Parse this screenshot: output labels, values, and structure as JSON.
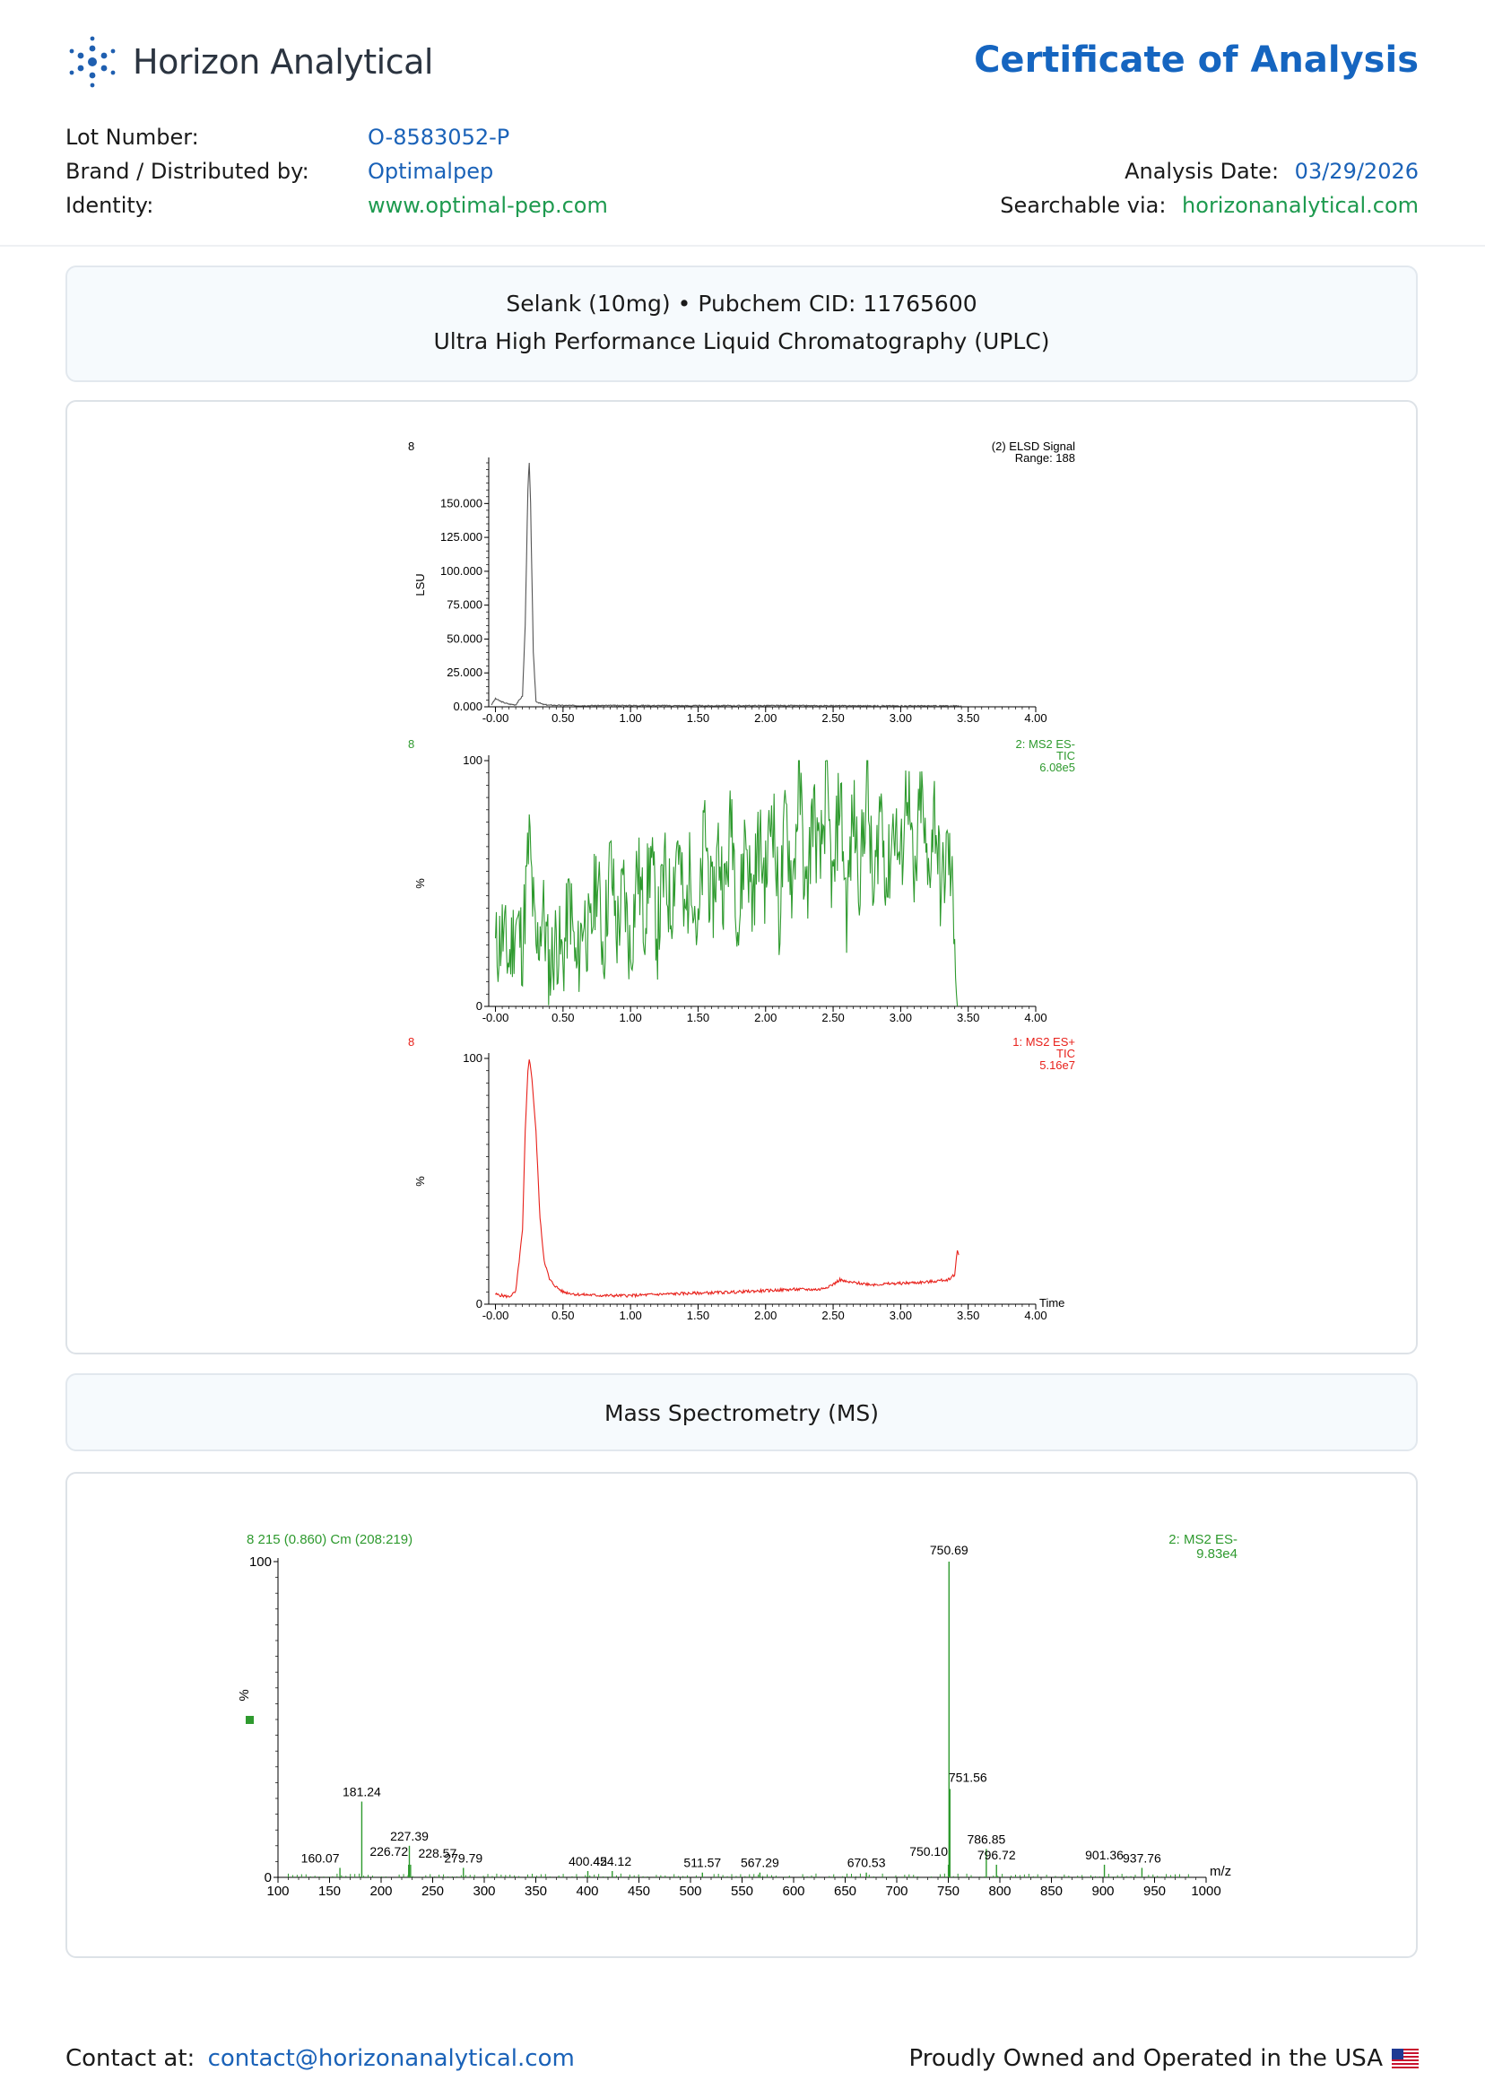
{
  "header": {
    "brand_name": "Horizon Analytical",
    "document_title": "Certificate of Analysis"
  },
  "meta": {
    "lot_label": "Lot Number:",
    "lot_value": "O-8583052-P",
    "brand_label": "Brand / Distributed by:",
    "brand_value": "Optimalpep",
    "identity_label": "Identity:",
    "identity_value": "www.optimal-pep.com",
    "analysis_date_label": "Analysis Date:",
    "analysis_date_value": "03/29/2026",
    "searchable_label": "Searchable via:",
    "searchable_value": "horizonanalytical.com"
  },
  "uplc_panel": {
    "line1": "Selank (10mg) • Pubchem CID: 11765600",
    "line2": "Ultra High Performance Liquid Chromatography (UPLC)"
  },
  "ms_panel": {
    "title": "Mass Spectrometry (MS)"
  },
  "colors": {
    "brand_blue": "#1565c0",
    "link_green": "#1e9a4f",
    "elsd": "#555555",
    "ms_neg": "#2e9a2e",
    "ms_pos": "#e8201a"
  },
  "chart_data": [
    {
      "type": "line",
      "id": "elsd",
      "corner_label": "8",
      "trace_label": [
        "(2) ELSD Signal",
        "Range: 188"
      ],
      "ylabel": "LSU",
      "xlim": [
        -0.05,
        4.0
      ],
      "ylim": [
        0,
        180000
      ],
      "x_ticks": [
        "-0.00",
        "0.50",
        "1.00",
        "1.50",
        "2.00",
        "2.50",
        "3.00",
        "3.50",
        "4.00"
      ],
      "y_ticks": [
        "0.000",
        "25.000",
        "50.000",
        "75.000",
        "100.000",
        "125.000",
        "150.000"
      ],
      "color": "elsd",
      "x": [
        -0.03,
        0.0,
        0.05,
        0.1,
        0.15,
        0.2,
        0.22,
        0.24,
        0.25,
        0.26,
        0.28,
        0.3,
        0.35,
        0.4,
        0.6,
        1.0,
        1.5,
        2.0,
        2.5,
        3.0,
        3.3,
        3.45
      ],
      "y": [
        1500,
        6000,
        3500,
        2000,
        1500,
        8000,
        60000,
        160000,
        182000,
        150000,
        40000,
        4000,
        1800,
        1200,
        900,
        1000,
        800,
        900,
        800,
        700,
        700,
        600
      ]
    },
    {
      "type": "line",
      "id": "ms2-es-neg-tic",
      "corner_label": "8",
      "trace_label": [
        "2: MS2 ES-",
        "TIC",
        "6.08e5"
      ],
      "ylabel": "%",
      "xlim": [
        -0.05,
        4.0
      ],
      "ylim": [
        0,
        100
      ],
      "y_ticks": [
        "0",
        "100"
      ],
      "x_ticks": [
        "-0.00",
        "0.50",
        "1.00",
        "1.50",
        "2.00",
        "2.50",
        "3.00",
        "3.50",
        "4.00"
      ],
      "color": "ms_neg",
      "x": [
        0.0,
        0.05,
        0.1,
        0.15,
        0.2,
        0.25,
        0.3,
        0.35,
        0.4,
        0.45,
        0.5,
        0.55,
        0.6,
        0.65,
        0.7,
        0.75,
        0.8,
        0.85,
        0.9,
        0.95,
        1.0,
        1.05,
        1.1,
        1.15,
        1.2,
        1.25,
        1.3,
        1.35,
        1.4,
        1.45,
        1.5,
        1.55,
        1.6,
        1.65,
        1.7,
        1.75,
        1.8,
        1.85,
        1.9,
        1.95,
        2.0,
        2.05,
        2.1,
        2.15,
        2.2,
        2.25,
        2.3,
        2.35,
        2.4,
        2.45,
        2.5,
        2.55,
        2.6,
        2.65,
        2.7,
        2.75,
        2.8,
        2.85,
        2.9,
        2.95,
        3.0,
        3.05,
        3.1,
        3.15,
        3.2,
        3.25,
        3.3,
        3.35,
        3.4,
        3.42
      ],
      "y": [
        22,
        30,
        18,
        35,
        25,
        68,
        20,
        40,
        15,
        28,
        18,
        45,
        12,
        38,
        25,
        55,
        22,
        60,
        30,
        48,
        20,
        58,
        35,
        62,
        28,
        55,
        40,
        70,
        32,
        60,
        25,
        75,
        38,
        65,
        45,
        80,
        30,
        72,
        42,
        68,
        50,
        85,
        35,
        78,
        48,
        95,
        40,
        82,
        55,
        88,
        45,
        90,
        38,
        80,
        52,
        92,
        40,
        85,
        48,
        78,
        55,
        95,
        42,
        88,
        50,
        82,
        45,
        65,
        35,
        0
      ]
    },
    {
      "type": "line",
      "id": "ms2-es-pos-tic",
      "corner_label": "8",
      "trace_label": [
        "1: MS2 ES+",
        "TIC",
        "5.16e7"
      ],
      "ylabel": "%",
      "xlabel": "Time",
      "xlim": [
        -0.05,
        4.0
      ],
      "ylim": [
        0,
        100
      ],
      "y_ticks": [
        "0",
        "100"
      ],
      "x_ticks": [
        "-0.00",
        "0.50",
        "1.00",
        "1.50",
        "2.00",
        "2.50",
        "3.00",
        "3.50",
        "4.00"
      ],
      "color": "ms_pos",
      "x": [
        0.0,
        0.1,
        0.15,
        0.2,
        0.22,
        0.24,
        0.25,
        0.27,
        0.3,
        0.33,
        0.36,
        0.4,
        0.45,
        0.5,
        0.6,
        0.8,
        1.0,
        1.2,
        1.5,
        1.8,
        2.0,
        2.2,
        2.4,
        2.5,
        2.55,
        2.6,
        2.8,
        3.0,
        3.2,
        3.35,
        3.4,
        3.42,
        3.43
      ],
      "y": [
        4,
        3,
        5,
        30,
        70,
        95,
        100,
        92,
        70,
        35,
        18,
        10,
        7,
        5,
        4,
        3.5,
        3.5,
        4,
        4.5,
        5,
        5.5,
        6,
        6,
        8,
        10,
        9,
        8,
        8.5,
        9,
        10,
        12,
        22,
        20
      ]
    },
    {
      "type": "bar",
      "id": "ms-spectrum",
      "scan_label": "8 215 (0.860) Cm (208:219)",
      "trace_label": [
        "2: MS2 ES-",
        "9.83e4"
      ],
      "ylabel": "%",
      "xlabel": "m/z",
      "xlim": [
        100,
        1000
      ],
      "ylim": [
        0,
        100
      ],
      "y_ticks": [
        "0",
        "100"
      ],
      "x_ticks": [
        "100",
        "150",
        "200",
        "250",
        "300",
        "350",
        "400",
        "450",
        "500",
        "550",
        "600",
        "650",
        "700",
        "750",
        "800",
        "850",
        "900",
        "950",
        "1000"
      ],
      "color": "ms_neg",
      "peaks": [
        {
          "mz": 160.07,
          "intensity": 3,
          "label": "160.07"
        },
        {
          "mz": 181.24,
          "intensity": 24,
          "label": "181.24"
        },
        {
          "mz": 226.72,
          "intensity": 4,
          "label": "226.72"
        },
        {
          "mz": 227.39,
          "intensity": 10,
          "label": "227.39"
        },
        {
          "mz": 228.57,
          "intensity": 4,
          "label": "228.57"
        },
        {
          "mz": 279.79,
          "intensity": 3,
          "label": "279.79"
        },
        {
          "mz": 400.45,
          "intensity": 2,
          "label": "400.45"
        },
        {
          "mz": 424.12,
          "intensity": 2,
          "label": "424.12"
        },
        {
          "mz": 511.57,
          "intensity": 1.5,
          "label": "511.57"
        },
        {
          "mz": 567.29,
          "intensity": 1.5,
          "label": "567.29"
        },
        {
          "mz": 670.53,
          "intensity": 1.5,
          "label": "670.53"
        },
        {
          "mz": 750.1,
          "intensity": 4,
          "label": "750.10"
        },
        {
          "mz": 750.69,
          "intensity": 100,
          "label": "750.69"
        },
        {
          "mz": 751.56,
          "intensity": 28,
          "label": "751.56"
        },
        {
          "mz": 786.85,
          "intensity": 9,
          "label": "786.85"
        },
        {
          "mz": 796.72,
          "intensity": 4,
          "label": "796.72"
        },
        {
          "mz": 901.36,
          "intensity": 4,
          "label": "901.36"
        },
        {
          "mz": 937.76,
          "intensity": 3,
          "label": "937.76"
        }
      ]
    }
  ],
  "footer": {
    "contact_label": "Contact at:",
    "contact_email": "contact@horizonanalytical.com",
    "usa_text": "Proudly Owned and Operated in the USA"
  }
}
